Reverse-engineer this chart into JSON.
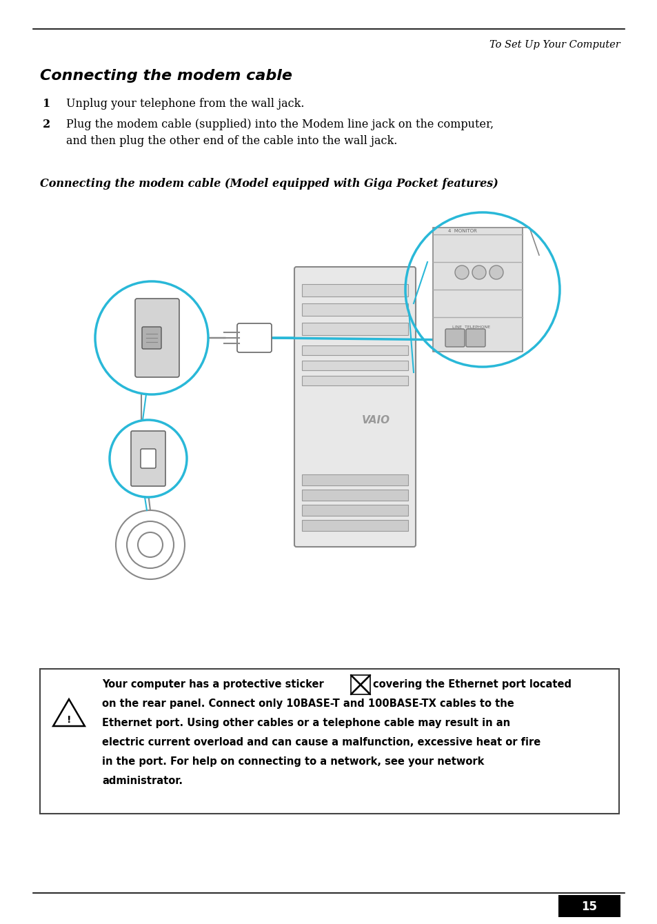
{
  "bg_color": "#ffffff",
  "text_color": "#000000",
  "cyan_color": "#29b8d8",
  "gray_light": "#d8d8d8",
  "gray_mid": "#aaaaaa",
  "gray_dark": "#777777",
  "page_number": "15",
  "header_text": "To Set Up Your Computer",
  "title": "Connecting the modem cable",
  "step1_num": "1",
  "step1_text": "Unplug your telephone from the wall jack.",
  "step2_num": "2",
  "step2_text1": "Plug the modem cable (supplied) into the Modem line jack on the computer,",
  "step2_text2": "and then plug the other end of the cable into the wall jack.",
  "subtitle": "Connecting the modem cable (Model equipped with Giga Pocket features)",
  "warn_line1": "Your computer has a protective sticker",
  "warn_line1b": "covering the Ethernet port located",
  "warn_line2": "on the rear panel. Connect only 10BASE-T and 100BASE-TX cables to the",
  "warn_line3": "Ethernet port. Using other cables or a telephone cable may result in an",
  "warn_line4": "electric current overload and can cause a malfunction, excessive heat or fire",
  "warn_line5": "in the port. For help on connecting to a network, see your network",
  "warn_line6": "administrator."
}
